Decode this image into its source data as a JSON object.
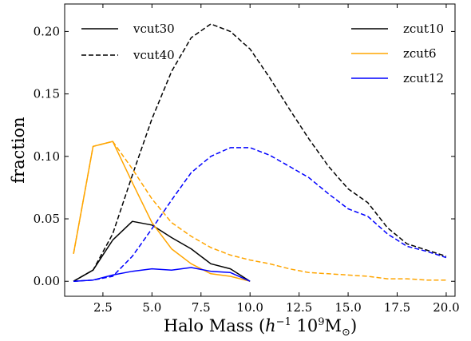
{
  "chart_data": {
    "type": "line",
    "title": "",
    "xlabel": "Halo Mass (h⁻¹ 10⁹M⊙)",
    "ylabel": "fraction",
    "xlim": [
      0.55,
      20.45
    ],
    "ylim": [
      -0.012,
      0.222
    ],
    "xticks": [
      2.5,
      5.0,
      7.5,
      10.0,
      12.5,
      15.0,
      17.5,
      20.0
    ],
    "xtick_labels": [
      "2.5",
      "5.0",
      "7.5",
      "10.0",
      "12.5",
      "15.0",
      "17.5",
      "20.0"
    ],
    "yticks": [
      0.0,
      0.05,
      0.1,
      0.15,
      0.2
    ],
    "ytick_labels": [
      "0.00",
      "0.05",
      "0.10",
      "0.15",
      "0.20"
    ],
    "grid": false,
    "legend_linestyle": [
      {
        "label": "vcut30",
        "dash": "solid"
      },
      {
        "label": "vcut40",
        "dash": "dashed"
      }
    ],
    "legend_series": [
      {
        "label": "zcut10",
        "color": "#000000"
      },
      {
        "label": "zcut6",
        "color": "#FFA500"
      },
      {
        "label": "zcut12",
        "color": "#0000FF"
      }
    ],
    "series": [
      {
        "name": "zcut10",
        "cut": "vcut30",
        "color": "#000000",
        "dash": "solid",
        "x": [
          1,
          2,
          3,
          4,
          5,
          6,
          7,
          8,
          9,
          10
        ],
        "y": [
          0.0,
          0.009,
          0.033,
          0.048,
          0.045,
          0.035,
          0.026,
          0.014,
          0.01,
          0.0
        ]
      },
      {
        "name": "zcut6",
        "cut": "vcut30",
        "color": "#FFA500",
        "dash": "solid",
        "x": [
          1,
          2,
          3,
          4,
          5,
          6,
          7,
          8,
          9,
          10
        ],
        "y": [
          0.022,
          0.108,
          0.112,
          0.079,
          0.047,
          0.026,
          0.014,
          0.006,
          0.004,
          0.0
        ]
      },
      {
        "name": "zcut12",
        "cut": "vcut30",
        "color": "#0000FF",
        "dash": "solid",
        "x": [
          1,
          2,
          3,
          4,
          5,
          6,
          7,
          8,
          9,
          10
        ],
        "y": [
          0.0,
          0.001,
          0.005,
          0.008,
          0.01,
          0.009,
          0.011,
          0.008,
          0.007,
          0.0
        ]
      },
      {
        "name": "zcut10",
        "cut": "vcut40",
        "color": "#000000",
        "dash": "dashed",
        "x": [
          1,
          2,
          3,
          4,
          5,
          6,
          7,
          8,
          9,
          10,
          11,
          12,
          13,
          14,
          15,
          16,
          17,
          18,
          19,
          20
        ],
        "y": [
          0.0,
          0.009,
          0.038,
          0.085,
          0.13,
          0.168,
          0.195,
          0.206,
          0.2,
          0.186,
          0.163,
          0.138,
          0.114,
          0.092,
          0.074,
          0.063,
          0.043,
          0.03,
          0.025,
          0.02
        ]
      },
      {
        "name": "zcut6",
        "cut": "vcut40",
        "color": "#FFA500",
        "dash": "dashed",
        "x": [
          1,
          2,
          3,
          4,
          5,
          6,
          7,
          8,
          9,
          10,
          11,
          12,
          13,
          14,
          15,
          16,
          17,
          18,
          19,
          20
        ],
        "y": [
          0.022,
          0.108,
          0.112,
          0.09,
          0.066,
          0.047,
          0.036,
          0.027,
          0.021,
          0.017,
          0.014,
          0.01,
          0.007,
          0.006,
          0.005,
          0.004,
          0.002,
          0.002,
          0.001,
          0.001
        ]
      },
      {
        "name": "zcut12",
        "cut": "vcut40",
        "color": "#0000FF",
        "dash": "dashed",
        "x": [
          1,
          2,
          3,
          4,
          5,
          6,
          7,
          8,
          9,
          10,
          11,
          12,
          13,
          14,
          15,
          16,
          17,
          18,
          19,
          20
        ],
        "y": [
          0.0,
          0.001,
          0.004,
          0.02,
          0.042,
          0.065,
          0.087,
          0.1,
          0.107,
          0.107,
          0.101,
          0.092,
          0.083,
          0.07,
          0.058,
          0.052,
          0.038,
          0.028,
          0.024,
          0.019
        ]
      }
    ]
  }
}
